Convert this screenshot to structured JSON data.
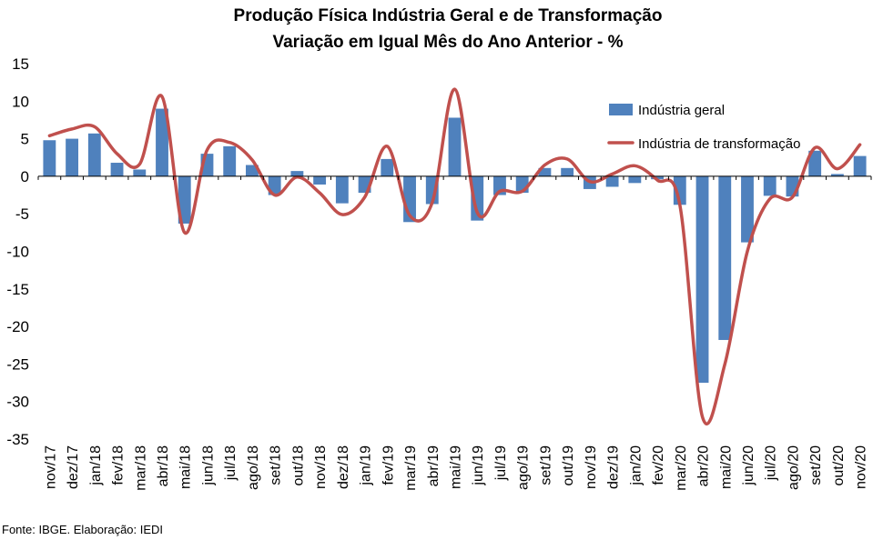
{
  "chart_data": {
    "type": "bar+line",
    "title": "Produção Física Indústria Geral e de Transformação",
    "subtitle": "Variação em Igual Mês do Ano Anterior - %",
    "categories": [
      "nov/17",
      "dez/17",
      "jan/18",
      "fev/18",
      "mar/18",
      "abr/18",
      "mai/18",
      "jun/18",
      "jul/18",
      "ago/18",
      "set/18",
      "out/18",
      "nov/18",
      "dez/18",
      "jan/19",
      "fev/19",
      "mar/19",
      "abr/19",
      "mai/19",
      "jun/19",
      "jul/19",
      "ago/19",
      "set/19",
      "out/19",
      "nov/19",
      "dez/19",
      "jan/20",
      "fev/20",
      "mar/20",
      "abr/20",
      "mai/20",
      "jun/20",
      "jul/20",
      "ago/20",
      "set/20",
      "out/20",
      "nov/20"
    ],
    "series": [
      {
        "name": "Indústria geral",
        "kind": "bar",
        "color": "#4f81bd",
        "values": [
          4.8,
          5.0,
          5.7,
          1.8,
          0.9,
          9.0,
          -6.3,
          3.0,
          4.0,
          1.5,
          -2.5,
          0.7,
          -1.1,
          -3.6,
          -2.2,
          2.3,
          -6.1,
          -3.7,
          7.8,
          -5.9,
          -2.5,
          -2.2,
          1.1,
          1.1,
          -1.7,
          -1.4,
          -0.9,
          -0.4,
          -3.8,
          -27.5,
          -21.8,
          -8.8,
          -2.6,
          -2.7,
          3.4,
          0.3,
          2.7
        ]
      },
      {
        "name": "Indústria de transformação",
        "kind": "line",
        "color": "#c0504d",
        "values": [
          5.4,
          6.3,
          6.6,
          3.0,
          1.6,
          10.6,
          -7.5,
          3.5,
          4.5,
          2.2,
          -2.5,
          -0.1,
          -2.2,
          -5.1,
          -2.8,
          4.0,
          -5.2,
          -3.5,
          11.6,
          -4.8,
          -2.0,
          -2.0,
          1.5,
          2.3,
          -0.7,
          0.3,
          1.4,
          -0.5,
          -3.8,
          -32.0,
          -25.0,
          -10.0,
          -3.0,
          -2.8,
          3.8,
          1.0,
          4.2
        ]
      }
    ],
    "ylim": [
      -35,
      15
    ],
    "yticks": [
      15,
      10,
      5,
      0,
      -5,
      -10,
      -15,
      -20,
      -25,
      -30,
      -35
    ],
    "grid": false,
    "legend_position": "top-right",
    "source_note": "Fonte: IBGE. Elaboração: IEDI"
  }
}
